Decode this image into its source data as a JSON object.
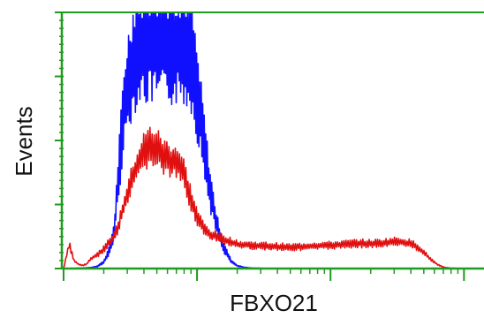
{
  "chart_data": {
    "type": "line",
    "xlabel": "FBXO21",
    "ylabel": "Events",
    "xscale": "log",
    "grid": false,
    "legend": "none",
    "colors": {
      "axis": "#1f9b1f",
      "control": "#1010ff",
      "sample": "#e01010"
    },
    "series": [
      {
        "color": "#1010ff",
        "x": [
          10,
          12,
          14,
          16,
          18,
          20,
          22,
          24,
          26,
          28,
          30,
          33,
          36,
          40,
          45,
          50,
          56,
          63,
          70,
          80,
          90,
          100,
          112,
          125,
          140,
          160,
          180,
          200,
          225,
          250,
          280,
          320,
          360,
          400,
          500
        ],
        "y": [
          0,
          0.5,
          1.2,
          2.4,
          6,
          16,
          44,
          96,
          250,
          380,
          460,
          520,
          560,
          560,
          560,
          560,
          560,
          560,
          560,
          560,
          540,
          440,
          320,
          200,
          110,
          50,
          18,
          7,
          3,
          1.5,
          0.8,
          0.4,
          0.2,
          0,
          0
        ]
      },
      {
        "color": "#e01010",
        "x": [
          10,
          11,
          12,
          13,
          14,
          15,
          16,
          18,
          20,
          22,
          25,
          28,
          31,
          35,
          40,
          45,
          50,
          56,
          63,
          70,
          80,
          90,
          100,
          112,
          125,
          140,
          160,
          180,
          200,
          250,
          300,
          400,
          500,
          630,
          800,
          1000,
          1250,
          1600,
          2000,
          2500,
          3200,
          4000,
          4500,
          5000,
          5600,
          6300,
          7100,
          8000,
          10000
        ],
        "y": [
          0,
          60,
          20,
          10,
          8,
          12,
          25,
          35,
          48,
          65,
          92,
          150,
          200,
          250,
          292,
          308,
          300,
          280,
          270,
          268,
          235,
          175,
          130,
          100,
          84,
          80,
          72,
          66,
          60,
          58,
          57,
          55,
          53,
          55,
          57,
          58,
          60,
          63,
          62,
          64,
          68,
          62,
          54,
          40,
          24,
          10,
          3,
          1,
          0
        ]
      }
    ]
  }
}
